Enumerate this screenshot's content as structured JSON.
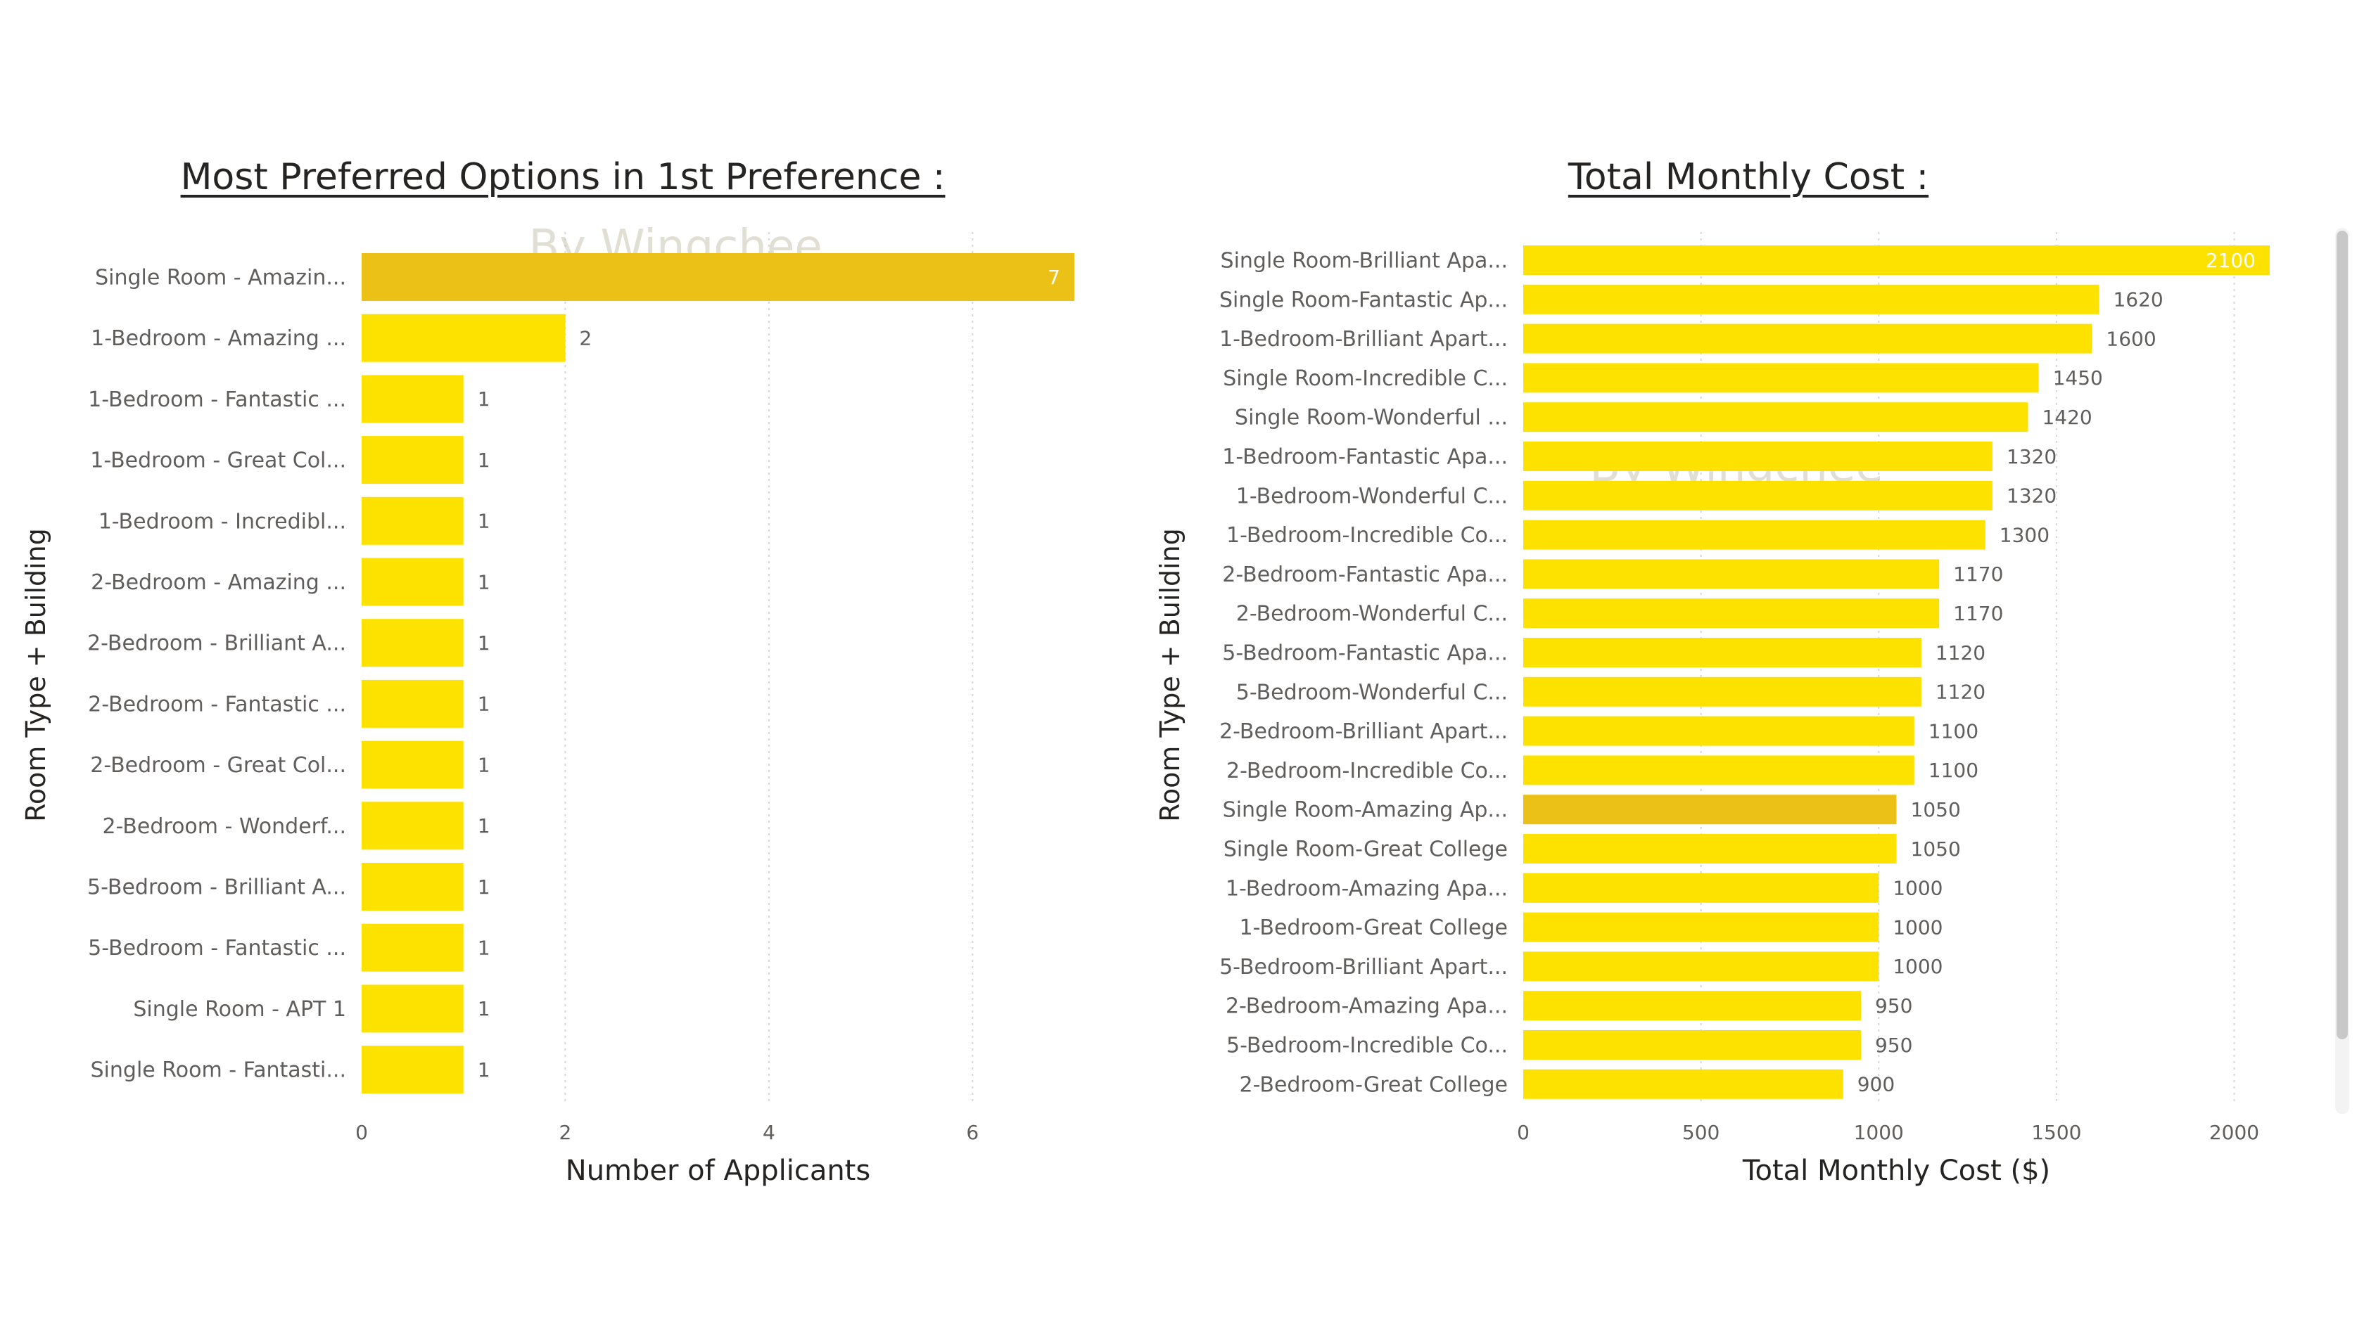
{
  "chart_data": [
    {
      "type": "bar",
      "orientation": "horizontal",
      "title": "Most Preferred Options in 1st Preference :",
      "watermark": "By Wingchee",
      "xlabel": "Number of Applicants",
      "ylabel": "Room Type + Building",
      "xlim": [
        0,
        7
      ],
      "xticks": [
        0,
        2,
        4,
        6
      ],
      "grid": true,
      "categories": [
        "Single Room - Amazin...",
        "1-Bedroom - Amazing ...",
        "1-Bedroom - Fantastic ...",
        "1-Bedroom - Great Col...",
        "1-Bedroom - Incredibl...",
        "2-Bedroom - Amazing ...",
        "2-Bedroom - Brilliant A...",
        "2-Bedroom - Fantastic ...",
        "2-Bedroom - Great Col...",
        "2-Bedroom - Wonderf...",
        "5-Bedroom - Brilliant A...",
        "5-Bedroom - Fantastic ...",
        "Single Room - APT 1",
        "Single Room - Fantasti..."
      ],
      "values": [
        7,
        2,
        1,
        1,
        1,
        1,
        1,
        1,
        1,
        1,
        1,
        1,
        1,
        1
      ],
      "highlight_index": 0,
      "colors": {
        "bar": "#FDE200",
        "highlight": "#EBC017",
        "label": "#605E5C",
        "inside_label": "#FFFFFF"
      }
    },
    {
      "type": "bar",
      "orientation": "horizontal",
      "title": "Total Monthly Cost :",
      "watermark": "By Wingchee",
      "xlabel": "Total Monthly Cost ($)",
      "ylabel": "Room Type + Building",
      "xlim": [
        0,
        2100
      ],
      "xticks": [
        0,
        500,
        1000,
        1500,
        2000
      ],
      "grid": true,
      "categories": [
        "Single Room-Brilliant Apa...",
        "Single Room-Fantastic Ap...",
        "1-Bedroom-Brilliant Apart...",
        "Single Room-Incredible C...",
        "Single Room-Wonderful ...",
        "1-Bedroom-Fantastic Apa...",
        "1-Bedroom-Wonderful C...",
        "1-Bedroom-Incredible Co...",
        "2-Bedroom-Fantastic Apa...",
        "2-Bedroom-Wonderful C...",
        "5-Bedroom-Fantastic Apa...",
        "5-Bedroom-Wonderful C...",
        "2-Bedroom-Brilliant Apart...",
        "2-Bedroom-Incredible Co...",
        "Single Room-Amazing Ap...",
        "Single Room-Great College",
        "1-Bedroom-Amazing Apa...",
        "1-Bedroom-Great College",
        "5-Bedroom-Brilliant Apart...",
        "2-Bedroom-Amazing Apa...",
        "5-Bedroom-Incredible Co...",
        "2-Bedroom-Great College"
      ],
      "values": [
        2100,
        1620,
        1600,
        1450,
        1420,
        1320,
        1320,
        1300,
        1170,
        1170,
        1120,
        1120,
        1100,
        1100,
        1050,
        1050,
        1000,
        1000,
        1000,
        950,
        950,
        900
      ],
      "highlight_index": 14,
      "colors": {
        "bar": "#FDE200",
        "highlight": "#EBC017",
        "label": "#605E5C",
        "inside_label": "#FFFFFF"
      }
    }
  ]
}
